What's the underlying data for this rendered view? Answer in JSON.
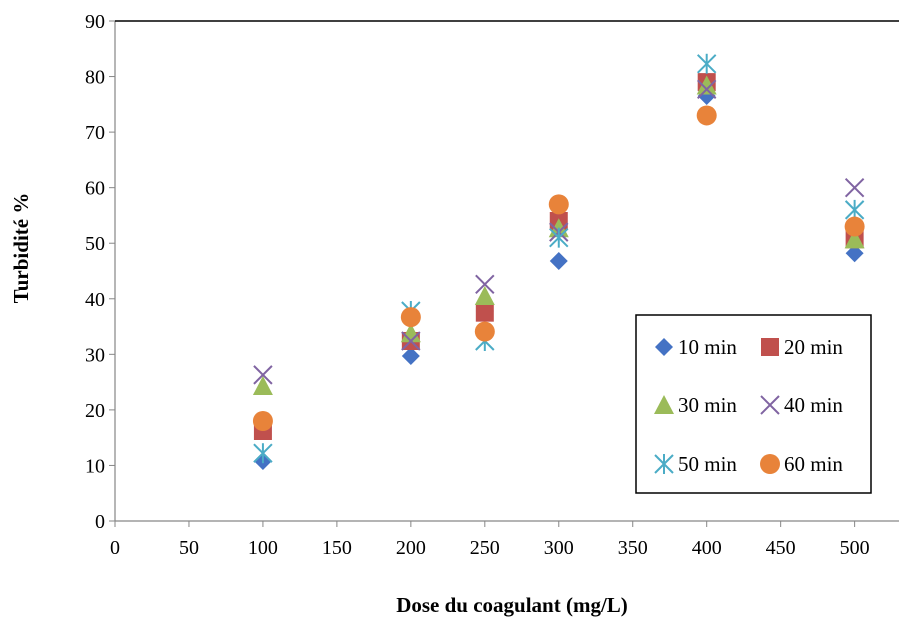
{
  "chart_data": {
    "type": "scatter",
    "title": "",
    "xlabel": "Dose du coagulant (mg/L)",
    "ylabel": "Turbidité %",
    "xlim": [
      0,
      530
    ],
    "ylim": [
      0,
      90
    ],
    "xticks": [
      0,
      50,
      100,
      150,
      200,
      250,
      300,
      350,
      400,
      450,
      500
    ],
    "yticks": [
      0,
      10,
      20,
      30,
      40,
      50,
      60,
      70,
      80,
      90
    ],
    "grid": false,
    "legend_position": "bottom-right",
    "x": [
      100,
      200,
      250,
      300,
      400,
      500
    ],
    "series": [
      {
        "name": "10 min",
        "marker": "diamond",
        "color": "#4472C4",
        "values": [
          10.8,
          29.7,
          37.8,
          46.8,
          76.5,
          48.2
        ]
      },
      {
        "name": "20 min",
        "marker": "square",
        "color": "#C0504D",
        "values": [
          16.2,
          32.4,
          37.5,
          54.0,
          79.0,
          50.7
        ]
      },
      {
        "name": "30 min",
        "marker": "triangle",
        "color": "#9BBB59",
        "values": [
          24.3,
          33.8,
          40.5,
          52.7,
          78.4,
          50.7
        ]
      },
      {
        "name": "40 min",
        "marker": "x",
        "color": "#8064A2",
        "values": [
          26.3,
          32.4,
          42.6,
          52.0,
          77.7,
          60.0
        ]
      },
      {
        "name": "50 min",
        "marker": "star",
        "color": "#4BACC6",
        "values": [
          12.2,
          37.8,
          32.4,
          51.0,
          82.3,
          56.0
        ]
      },
      {
        "name": "60 min",
        "marker": "circle",
        "color": "#E8833A",
        "values": [
          18.0,
          36.7,
          34.1,
          57.0,
          73.0,
          53.0
        ]
      }
    ]
  }
}
